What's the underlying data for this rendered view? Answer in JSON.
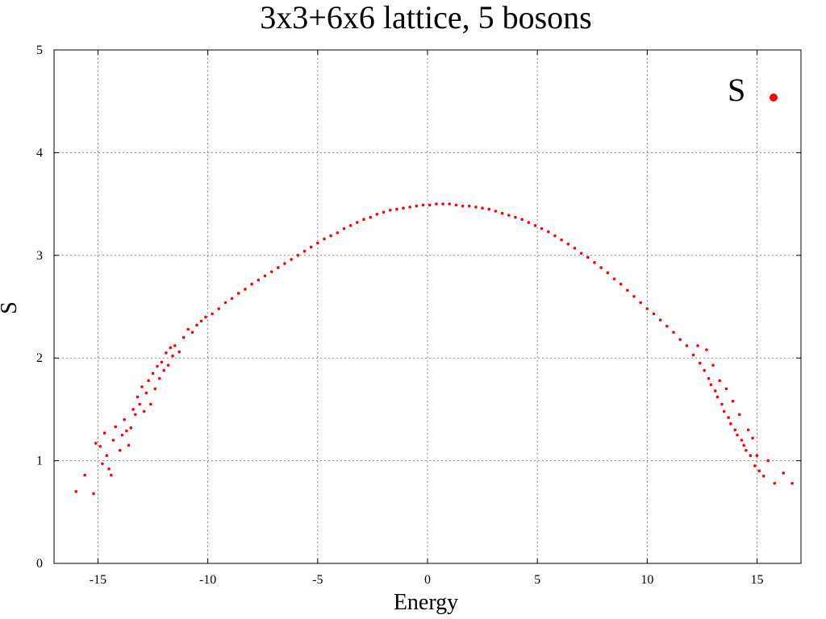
{
  "chart_data": {
    "type": "scatter",
    "title": "3x3+6x6 lattice, 5 bosons",
    "xlabel": "Energy",
    "ylabel": "S",
    "xlim": [
      -17,
      17
    ],
    "ylim": [
      0,
      5
    ],
    "xticks": [
      -15,
      -10,
      -5,
      0,
      5,
      10,
      15
    ],
    "yticks": [
      0,
      1,
      2,
      3,
      4,
      5
    ],
    "grid": true,
    "legend_position": "top-right",
    "series": [
      {
        "name": "S",
        "color": "#ff0000",
        "marker": "dot",
        "points": [
          [
            -16.0,
            0.7
          ],
          [
            -15.6,
            0.86
          ],
          [
            -15.2,
            0.68
          ],
          [
            -15.1,
            1.17
          ],
          [
            -14.9,
            1.14
          ],
          [
            -14.8,
            0.97
          ],
          [
            -14.7,
            1.27
          ],
          [
            -14.6,
            1.05
          ],
          [
            -14.5,
            0.92
          ],
          [
            -14.4,
            0.86
          ],
          [
            -14.3,
            1.2
          ],
          [
            -14.2,
            1.33
          ],
          [
            -14.0,
            1.1
          ],
          [
            -13.9,
            1.25
          ],
          [
            -13.8,
            1.4
          ],
          [
            -13.7,
            1.29
          ],
          [
            -13.6,
            1.15
          ],
          [
            -13.5,
            1.32
          ],
          [
            -13.4,
            1.5
          ],
          [
            -13.3,
            1.45
          ],
          [
            -13.2,
            1.62
          ],
          [
            -13.1,
            1.55
          ],
          [
            -13.0,
            1.72
          ],
          [
            -12.9,
            1.48
          ],
          [
            -12.8,
            1.66
          ],
          [
            -12.7,
            1.78
          ],
          [
            -12.6,
            1.55
          ],
          [
            -12.5,
            1.85
          ],
          [
            -12.4,
            1.7
          ],
          [
            -12.3,
            1.92
          ],
          [
            -12.2,
            1.8
          ],
          [
            -12.1,
            1.96
          ],
          [
            -12.0,
            1.88
          ],
          [
            -11.9,
            2.05
          ],
          [
            -11.8,
            1.93
          ],
          [
            -11.7,
            2.1
          ],
          [
            -11.6,
            2.02
          ],
          [
            -11.5,
            2.12
          ],
          [
            -11.3,
            2.06
          ],
          [
            -11.1,
            2.2
          ],
          [
            -10.9,
            2.28
          ],
          [
            -10.7,
            2.25
          ],
          [
            -10.5,
            2.32
          ],
          [
            -10.3,
            2.36
          ],
          [
            -10.1,
            2.4
          ],
          [
            -9.8,
            2.43
          ],
          [
            -9.5,
            2.48
          ],
          [
            -9.2,
            2.54
          ],
          [
            -8.9,
            2.58
          ],
          [
            -8.6,
            2.63
          ],
          [
            -8.3,
            2.67
          ],
          [
            -8.0,
            2.72
          ],
          [
            -7.7,
            2.76
          ],
          [
            -7.4,
            2.8
          ],
          [
            -7.1,
            2.84
          ],
          [
            -6.8,
            2.88
          ],
          [
            -6.5,
            2.92
          ],
          [
            -6.2,
            2.96
          ],
          [
            -5.9,
            3.0
          ],
          [
            -5.6,
            3.04
          ],
          [
            -5.3,
            3.08
          ],
          [
            -5.0,
            3.12
          ],
          [
            -4.7,
            3.16
          ],
          [
            -4.4,
            3.19
          ],
          [
            -4.1,
            3.22
          ],
          [
            -3.8,
            3.26
          ],
          [
            -3.5,
            3.29
          ],
          [
            -3.2,
            3.32
          ],
          [
            -2.9,
            3.35
          ],
          [
            -2.6,
            3.37
          ],
          [
            -2.3,
            3.4
          ],
          [
            -2.0,
            3.42
          ],
          [
            -1.7,
            3.44
          ],
          [
            -1.4,
            3.45
          ],
          [
            -1.1,
            3.46
          ],
          [
            -0.8,
            3.47
          ],
          [
            -0.5,
            3.48
          ],
          [
            -0.2,
            3.49
          ],
          [
            0.1,
            3.49
          ],
          [
            0.4,
            3.5
          ],
          [
            0.7,
            3.5
          ],
          [
            1.0,
            3.5
          ],
          [
            1.3,
            3.49
          ],
          [
            1.6,
            3.48
          ],
          [
            1.9,
            3.48
          ],
          [
            2.2,
            3.47
          ],
          [
            2.5,
            3.46
          ],
          [
            2.8,
            3.45
          ],
          [
            3.1,
            3.43
          ],
          [
            3.4,
            3.41
          ],
          [
            3.7,
            3.39
          ],
          [
            4.0,
            3.37
          ],
          [
            4.3,
            3.35
          ],
          [
            4.6,
            3.32
          ],
          [
            4.9,
            3.29
          ],
          [
            5.2,
            3.26
          ],
          [
            5.5,
            3.23
          ],
          [
            5.8,
            3.19
          ],
          [
            6.1,
            3.15
          ],
          [
            6.4,
            3.11
          ],
          [
            6.7,
            3.07
          ],
          [
            7.0,
            3.02
          ],
          [
            7.3,
            2.98
          ],
          [
            7.6,
            2.93
          ],
          [
            7.9,
            2.88
          ],
          [
            8.2,
            2.83
          ],
          [
            8.5,
            2.77
          ],
          [
            8.8,
            2.72
          ],
          [
            9.1,
            2.66
          ],
          [
            9.4,
            2.6
          ],
          [
            9.7,
            2.54
          ],
          [
            10.0,
            2.48
          ],
          [
            10.3,
            2.43
          ],
          [
            10.6,
            2.37
          ],
          [
            10.9,
            2.31
          ],
          [
            11.2,
            2.25
          ],
          [
            11.5,
            2.18
          ],
          [
            11.8,
            2.12
          ],
          [
            12.1,
            2.03
          ],
          [
            12.3,
            2.12
          ],
          [
            12.4,
            1.95
          ],
          [
            12.6,
            1.88
          ],
          [
            12.7,
            2.08
          ],
          [
            12.8,
            1.8
          ],
          [
            12.9,
            1.74
          ],
          [
            13.0,
            1.93
          ],
          [
            13.1,
            1.68
          ],
          [
            13.2,
            1.62
          ],
          [
            13.3,
            1.78
          ],
          [
            13.4,
            1.55
          ],
          [
            13.5,
            1.48
          ],
          [
            13.6,
            1.7
          ],
          [
            13.7,
            1.42
          ],
          [
            13.8,
            1.36
          ],
          [
            13.9,
            1.58
          ],
          [
            14.0,
            1.3
          ],
          [
            14.1,
            1.25
          ],
          [
            14.2,
            1.45
          ],
          [
            14.3,
            1.2
          ],
          [
            14.4,
            1.15
          ],
          [
            14.5,
            1.1
          ],
          [
            14.6,
            1.3
          ],
          [
            14.7,
            1.05
          ],
          [
            14.8,
            1.22
          ],
          [
            14.9,
            0.95
          ],
          [
            15.0,
            1.05
          ],
          [
            15.1,
            0.9
          ],
          [
            15.3,
            0.85
          ],
          [
            15.5,
            1.0
          ],
          [
            15.8,
            0.78
          ],
          [
            16.2,
            0.88
          ],
          [
            16.6,
            0.78
          ]
        ]
      }
    ]
  }
}
